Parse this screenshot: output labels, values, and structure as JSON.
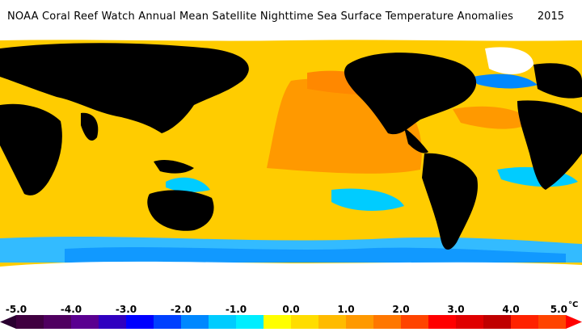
{
  "title": "NOAA Coral Reef Watch Annual Mean Satellite Nighttime Sea Surface Temperature Anomalies",
  "year": "2015",
  "colors": {
    "land": "#000000",
    "ice": "#ffffff",
    "warm_anomaly": "#ffcc00",
    "hot_anomaly": "#ff9900",
    "cool_anomaly": "#00ccff",
    "cold_anomaly": "#0066ff"
  },
  "legend": {
    "unit": "°C",
    "ticks": [
      {
        "value": -5.0,
        "label": "-5.0"
      },
      {
        "value": -4.0,
        "label": "-4.0"
      },
      {
        "value": -3.0,
        "label": "-3.0"
      },
      {
        "value": -2.0,
        "label": "-2.0"
      },
      {
        "value": -1.0,
        "label": "-1.0"
      },
      {
        "value": 0.0,
        "label": "0.0"
      },
      {
        "value": 1.0,
        "label": "1.0"
      },
      {
        "value": 2.0,
        "label": "2.0"
      },
      {
        "value": 3.0,
        "label": "3.0"
      },
      {
        "value": 4.0,
        "label": "4.0"
      },
      {
        "value": 5.0,
        "label": "5.0"
      }
    ],
    "min": -5.0,
    "max": 5.0,
    "swatch_colors": [
      "#400040",
      "#500060",
      "#5a0090",
      "#3000c0",
      "#0000ff",
      "#0040ff",
      "#0088ff",
      "#00ccff",
      "#00eeff",
      "#ffff00",
      "#ffdd00",
      "#ffbb00",
      "#ff9900",
      "#ff7700",
      "#ff4400",
      "#ff0000",
      "#e00000",
      "#c00000",
      "#ff2200",
      "#ff4400"
    ]
  }
}
